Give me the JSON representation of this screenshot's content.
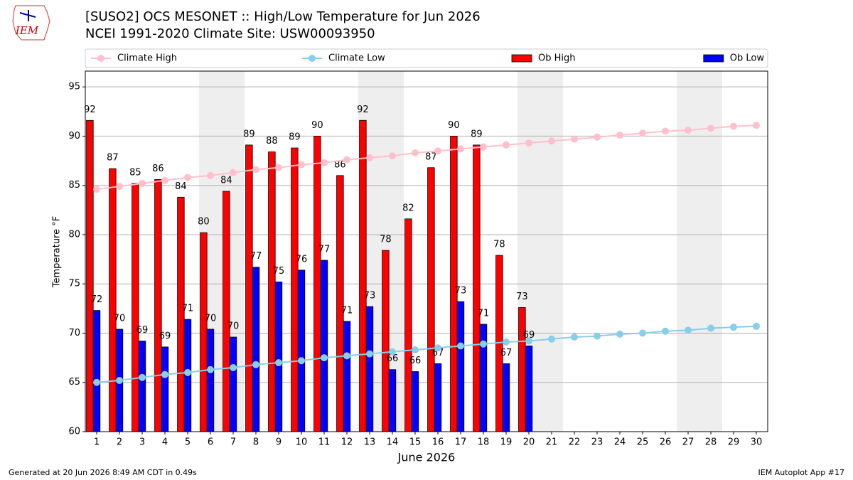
{
  "chart_data": {
    "type": "bar_line",
    "title": "[SUSO2] OCS MESONET :: High/Low Temperature for Jun 2026",
    "subtitle": "NCEI 1991-2020 Climate Site: USW00093950",
    "logo": "IEM",
    "xlabel": "June 2026",
    "ylabel": "Temperature °F",
    "footer_left": "Generated at 20 Jun 2026 8:49 AM CDT in 0.49s",
    "footer_right": "IEM Autoplot App #17",
    "x": [
      1,
      2,
      3,
      4,
      5,
      6,
      7,
      8,
      9,
      10,
      11,
      12,
      13,
      14,
      15,
      16,
      17,
      18,
      19,
      20,
      21,
      22,
      23,
      24,
      25,
      26,
      27,
      28,
      29,
      30
    ],
    "xlim": [
      0.5,
      30.5
    ],
    "xticks": [
      1,
      2,
      3,
      4,
      5,
      6,
      7,
      8,
      9,
      10,
      11,
      12,
      13,
      14,
      15,
      16,
      17,
      18,
      19,
      20,
      21,
      22,
      23,
      24,
      25,
      26,
      27,
      28,
      29,
      30
    ],
    "ylim": [
      60,
      96.6
    ],
    "yticks": [
      60,
      65,
      70,
      75,
      80,
      85,
      90,
      95
    ],
    "grid": true,
    "shaded_days": [
      6,
      7,
      13,
      14,
      20,
      21,
      27,
      28
    ],
    "series": [
      {
        "name": "Climate High",
        "kind": "line",
        "color": "#ffc0cb",
        "values": [
          84.6,
          84.9,
          85.2,
          85.5,
          85.8,
          86.0,
          86.3,
          86.6,
          86.8,
          87.1,
          87.3,
          87.6,
          87.8,
          88.0,
          88.3,
          88.5,
          88.7,
          88.9,
          89.1,
          89.3,
          89.5,
          89.7,
          89.9,
          90.1,
          90.3,
          90.5,
          90.6,
          90.8,
          91.0,
          91.1
        ]
      },
      {
        "name": "Climate Low",
        "kind": "line",
        "color": "#87ceeb",
        "values": [
          65.0,
          65.2,
          65.5,
          65.8,
          66.0,
          66.3,
          66.5,
          66.8,
          67.0,
          67.2,
          67.5,
          67.7,
          67.9,
          68.1,
          68.3,
          68.5,
          68.7,
          68.9,
          69.1,
          69.2,
          69.4,
          69.6,
          69.7,
          69.9,
          70.0,
          70.2,
          70.3,
          70.5,
          70.6,
          70.7
        ]
      },
      {
        "name": "Ob High",
        "kind": "bar",
        "color": "#ff0000",
        "values": [
          91.6,
          86.7,
          85.2,
          85.6,
          83.8,
          80.2,
          84.4,
          89.1,
          88.4,
          88.8,
          90.0,
          86.0,
          91.6,
          78.4,
          81.6,
          86.8,
          90.0,
          89.1,
          77.9,
          72.6,
          null,
          null,
          null,
          null,
          null,
          null,
          null,
          null,
          null,
          null
        ],
        "value_labels": [
          "92",
          "87",
          "85",
          "86",
          "84",
          "80",
          "84",
          "89",
          "88",
          "89",
          "90",
          "86",
          "92",
          "78",
          "82",
          "87",
          "90",
          "89",
          "78",
          "73",
          null,
          null,
          null,
          null,
          null,
          null,
          null,
          null,
          null,
          null
        ]
      },
      {
        "name": "Ob Low",
        "kind": "bar",
        "color": "#0000ff",
        "values": [
          72.3,
          70.4,
          69.2,
          68.6,
          71.4,
          70.4,
          69.6,
          76.7,
          75.2,
          76.4,
          77.4,
          71.2,
          72.7,
          66.3,
          66.1,
          66.9,
          73.2,
          70.9,
          66.9,
          68.7,
          null,
          null,
          null,
          null,
          null,
          null,
          null,
          null,
          null,
          null
        ],
        "value_labels": [
          "72",
          "70",
          "69",
          "69",
          "71",
          "70",
          "70",
          "77",
          "75",
          "76",
          "77",
          "71",
          "73",
          "66",
          "66",
          "67",
          "73",
          "71",
          "67",
          "69",
          null,
          null,
          null,
          null,
          null,
          null,
          null,
          null,
          null,
          null
        ]
      }
    ]
  }
}
